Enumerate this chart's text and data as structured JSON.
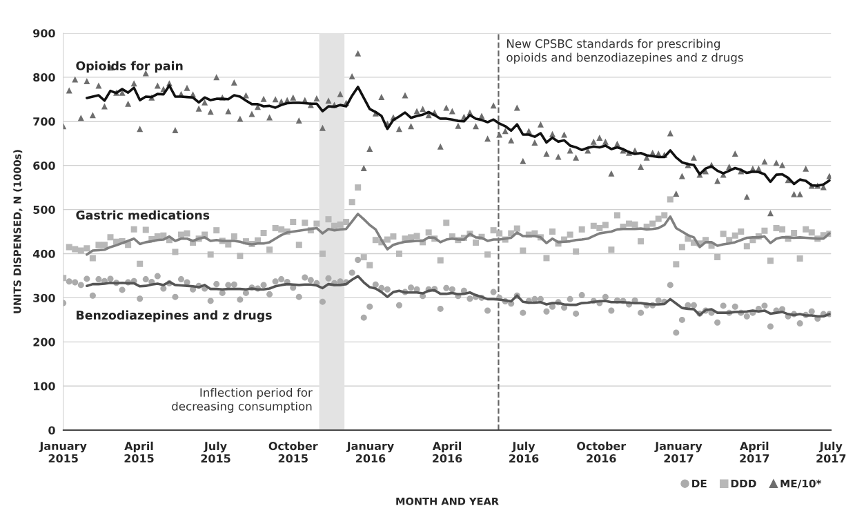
{
  "chart_data": {
    "type": "scatter",
    "xlabel": "MONTH AND YEAR",
    "ylabel": "UNITS DISPENSED, N (1000s)",
    "x": [
      "2015-01-01",
      "2015-01-08",
      "2015-01-15",
      "2015-01-22",
      "2015-01-29",
      "2015-02-05",
      "2015-02-12",
      "2015-02-19",
      "2015-02-26",
      "2015-03-05",
      "2015-03-12",
      "2015-03-19",
      "2015-03-26",
      "2015-04-02",
      "2015-04-09",
      "2015-04-16",
      "2015-04-23",
      "2015-04-30",
      "2015-05-07",
      "2015-05-14",
      "2015-05-21",
      "2015-05-28",
      "2015-06-04",
      "2015-06-11",
      "2015-06-18",
      "2015-06-25",
      "2015-07-02",
      "2015-07-09",
      "2015-07-16",
      "2015-07-23",
      "2015-07-30",
      "2015-08-06",
      "2015-08-13",
      "2015-08-20",
      "2015-08-27",
      "2015-09-03",
      "2015-09-10",
      "2015-09-17",
      "2015-09-24",
      "2015-10-01",
      "2015-10-08",
      "2015-10-15",
      "2015-10-22",
      "2015-10-29",
      "2015-11-05",
      "2015-11-12",
      "2015-11-19",
      "2015-11-26",
      "2015-12-03",
      "2015-12-10",
      "2015-12-17",
      "2015-12-24",
      "2015-12-31",
      "2016-01-07",
      "2016-01-14",
      "2016-01-21",
      "2016-01-28",
      "2016-02-04",
      "2016-02-11",
      "2016-02-18",
      "2016-02-25",
      "2016-03-03",
      "2016-03-10",
      "2016-03-17",
      "2016-03-24",
      "2016-03-31",
      "2016-04-07",
      "2016-04-14",
      "2016-04-21",
      "2016-04-28",
      "2016-05-05",
      "2016-05-12",
      "2016-05-19",
      "2016-05-26",
      "2016-06-02",
      "2016-06-09",
      "2016-06-16",
      "2016-06-23",
      "2016-06-30",
      "2016-07-07",
      "2016-07-14",
      "2016-07-21",
      "2016-07-28",
      "2016-08-04",
      "2016-08-11",
      "2016-08-18",
      "2016-08-25",
      "2016-09-01",
      "2016-09-08",
      "2016-09-15",
      "2016-09-22",
      "2016-09-29",
      "2016-10-06",
      "2016-10-13",
      "2016-10-20",
      "2016-10-27",
      "2016-11-03",
      "2016-11-10",
      "2016-11-17",
      "2016-11-24",
      "2016-12-01",
      "2016-12-08",
      "2016-12-15",
      "2016-12-22",
      "2016-12-29",
      "2017-01-05",
      "2017-01-12",
      "2017-01-19",
      "2017-01-26",
      "2017-02-02",
      "2017-02-09",
      "2017-02-16",
      "2017-02-23",
      "2017-03-02",
      "2017-03-09",
      "2017-03-16",
      "2017-03-23",
      "2017-03-30",
      "2017-04-06",
      "2017-04-13",
      "2017-04-20",
      "2017-04-27",
      "2017-05-04",
      "2017-05-11",
      "2017-05-18",
      "2017-05-25",
      "2017-06-01",
      "2017-06-08",
      "2017-06-15",
      "2017-06-22",
      "2017-06-29"
    ],
    "series": [
      {
        "name": "DE",
        "marker": "circle",
        "color": "#ababab",
        "values": [
          288,
          337,
          335,
          329,
          343,
          305,
          342,
          338,
          343,
          334,
          318,
          335,
          338,
          298,
          342,
          336,
          349,
          321,
          333,
          302,
          342,
          335,
          319,
          327,
          321,
          293,
          331,
          311,
          329,
          330,
          296,
          311,
          323,
          321,
          329,
          308,
          337,
          342,
          336,
          323,
          302,
          346,
          340,
          333,
          291,
          344,
          333,
          337,
          335,
          357,
          386,
          255,
          280,
          330,
          322,
          319,
          null,
          283,
          313,
          323,
          319,
          304,
          319,
          320,
          275,
          322,
          319,
          304,
          316,
          298,
          302,
          300,
          271,
          313,
          300,
          292,
          287,
          305,
          266,
          293,
          297,
          297,
          269,
          280,
          290,
          278,
          297,
          264,
          306,
          null,
          293,
          288,
          302,
          271,
          294,
          293,
          285,
          294,
          266,
          283,
          283,
          294,
          291,
          329,
          221,
          250,
          283,
          283,
          264,
          271,
          266,
          244,
          282,
          266,
          280,
          266,
          258,
          266,
          275,
          282,
          235,
          271,
          274,
          258,
          263,
          242,
          261,
          269,
          253,
          263,
          263
        ]
      },
      {
        "name": "DDD",
        "marker": "square",
        "color": "#b8b8b8",
        "values": [
          345,
          415,
          410,
          407,
          412,
          390,
          420,
          420,
          437,
          427,
          428,
          420,
          455,
          377,
          454,
          433,
          439,
          441,
          431,
          404,
          443,
          446,
          425,
          434,
          443,
          398,
          453,
          429,
          421,
          439,
          395,
          428,
          422,
          430,
          447,
          409,
          458,
          455,
          450,
          472,
          420,
          470,
          453,
          468,
          400,
          478,
          463,
          466,
          472,
          517,
          550,
          392,
          374,
          431,
          426,
          432,
          439,
          400,
          434,
          437,
          440,
          426,
          448,
          434,
          385,
          470,
          439,
          431,
          436,
          445,
          425,
          438,
          398,
          453,
          446,
          432,
          446,
          457,
          407,
          443,
          446,
          437,
          390,
          450,
          423,
          432,
          443,
          405,
          455,
          null,
          463,
          458,
          465,
          409,
          487,
          461,
          468,
          466,
          428,
          461,
          468,
          479,
          487,
          523,
          376,
          415,
          434,
          425,
          423,
          431,
          418,
          392,
          445,
          431,
          441,
          450,
          417,
          431,
          439,
          452,
          384,
          458,
          455,
          434,
          447,
          389,
          455,
          448,
          434,
          442,
          445
        ]
      },
      {
        "name": "ME/10*",
        "marker": "triangle",
        "color": "#6e6e6e",
        "values": [
          689,
          770,
          795,
          708,
          791,
          714,
          781,
          734,
          822,
          765,
          765,
          740,
          786,
          683,
          809,
          754,
          781,
          773,
          786,
          680,
          762,
          776,
          761,
          729,
          743,
          722,
          800,
          754,
          723,
          788,
          706,
          759,
          717,
          733,
          751,
          709,
          750,
          745,
          748,
          754,
          702,
          748,
          737,
          752,
          685,
          747,
          737,
          762,
          742,
          802,
          854,
          594,
          638,
          718,
          755,
          695,
          709,
          683,
          759,
          689,
          723,
          728,
          714,
          720,
          643,
          731,
          723,
          690,
          710,
          720,
          689,
          712,
          661,
          736,
          670,
          678,
          657,
          731,
          610,
          678,
          652,
          693,
          627,
          671,
          620,
          670,
          634,
          618,
          null,
          634,
          654,
          663,
          654,
          582,
          649,
          634,
          629,
          634,
          597,
          618,
          629,
          627,
          624,
          673,
          536,
          576,
          601,
          618,
          579,
          587,
          601,
          565,
          579,
          597,
          627,
          587,
          529,
          593,
          593,
          609,
          492,
          606,
          601,
          567,
          535,
          535,
          593,
          554,
          554,
          551,
          576
        ]
      },
      {
        "type": "line",
        "color": "#111111",
        "values": [
          null,
          null,
          null,
          null,
          753,
          756,
          759,
          747,
          769,
          764,
          773,
          765,
          776,
          748,
          756,
          755,
          762,
          761,
          781,
          756,
          756,
          755,
          754,
          743,
          754,
          748,
          751,
          751,
          750,
          759,
          756,
          747,
          739,
          739,
          734,
          735,
          731,
          737,
          741,
          742,
          742,
          741,
          740,
          740,
          723,
          734,
          733,
          737,
          734,
          758,
          778,
          753,
          728,
          721,
          712,
          683,
          703,
          711,
          720,
          708,
          712,
          715,
          721,
          714,
          706,
          706,
          704,
          701,
          700,
          714,
          706,
          703,
          698,
          704,
          695,
          689,
          679,
          693,
          670,
          670,
          665,
          673,
          652,
          663,
          654,
          657,
          645,
          641,
          635,
          640,
          643,
          641,
          645,
          637,
          641,
          637,
          630,
          626,
          628,
          623,
          621,
          619,
          619,
          634,
          618,
          607,
          603,
          601,
          580,
          593,
          598,
          588,
          582,
          588,
          594,
          590,
          583,
          586,
          585,
          580,
          563,
          579,
          580,
          572,
          558,
          568,
          565,
          555,
          554,
          557,
          566
        ]
      },
      {
        "type": "line",
        "color": "#808080",
        "values": [
          null,
          null,
          null,
          null,
          398,
          407,
          408,
          409,
          415,
          419,
          424,
          429,
          434,
          422,
          426,
          428,
          431,
          432,
          439,
          429,
          434,
          434,
          429,
          434,
          437,
          429,
          431,
          429,
          429,
          429,
          427,
          423,
          421,
          423,
          423,
          426,
          434,
          442,
          448,
          450,
          452,
          454,
          456,
          458,
          446,
          456,
          453,
          455,
          456,
          473,
          490,
          478,
          465,
          455,
          431,
          410,
          420,
          424,
          427,
          428,
          429,
          429,
          437,
          436,
          426,
          432,
          434,
          432,
          432,
          445,
          437,
          436,
          429,
          432,
          432,
          434,
          436,
          448,
          440,
          440,
          440,
          437,
          424,
          434,
          426,
          427,
          428,
          431,
          432,
          434,
          440,
          446,
          448,
          450,
          455,
          456,
          456,
          456,
          457,
          455,
          456,
          458,
          465,
          484,
          458,
          450,
          442,
          437,
          415,
          426,
          426,
          418,
          421,
          423,
          426,
          431,
          436,
          437,
          437,
          439,
          424,
          434,
          437,
          437,
          436,
          437,
          436,
          435,
          434,
          434,
          446
        ]
      },
      {
        "type": "line",
        "color": "#555555",
        "values": [
          null,
          null,
          null,
          null,
          327,
          331,
          331,
          332,
          334,
          333,
          334,
          333,
          333,
          326,
          327,
          330,
          332,
          329,
          336,
          329,
          328,
          327,
          326,
          324,
          329,
          320,
          320,
          319,
          320,
          320,
          320,
          319,
          321,
          319,
          319,
          321,
          326,
          329,
          331,
          330,
          329,
          330,
          330,
          328,
          322,
          331,
          329,
          329,
          331,
          341,
          349,
          335,
          324,
          321,
          313,
          302,
          313,
          316,
          312,
          312,
          312,
          310,
          316,
          317,
          309,
          309,
          311,
          308,
          309,
          312,
          306,
          302,
          297,
          297,
          296,
          294,
          292,
          305,
          291,
          289,
          289,
          290,
          285,
          288,
          288,
          285,
          284,
          284,
          288,
          289,
          291,
          292,
          293,
          290,
          290,
          290,
          289,
          288,
          288,
          286,
          285,
          285,
          286,
          297,
          287,
          277,
          275,
          274,
          261,
          272,
          274,
          266,
          266,
          266,
          268,
          268,
          269,
          271,
          269,
          271,
          264,
          266,
          268,
          263,
          261,
          263,
          260,
          260,
          258,
          258,
          263
        ]
      }
    ],
    "xlim": [
      "2015-01-01",
      "2017-07-01"
    ],
    "xticks": [
      {
        "value": "2015-01-01",
        "label": "January\n2015"
      },
      {
        "value": "2015-04-01",
        "label": "April\n2015"
      },
      {
        "value": "2015-07-01",
        "label": "July\n2015"
      },
      {
        "value": "2015-10-01",
        "label": "October\n2015"
      },
      {
        "value": "2016-01-01",
        "label": "January\n2016"
      },
      {
        "value": "2016-04-01",
        "label": "April\n2016"
      },
      {
        "value": "2016-07-01",
        "label": "July\n2016"
      },
      {
        "value": "2016-10-01",
        "label": "October\n2016"
      },
      {
        "value": "2017-01-01",
        "label": "January\n2017"
      },
      {
        "value": "2017-04-01",
        "label": "April\n2017"
      },
      {
        "value": "2017-07-01",
        "label": "July\n2017"
      }
    ],
    "ylim": [
      0,
      900
    ],
    "yticks": [
      0,
      100,
      200,
      300,
      400,
      500,
      600,
      700,
      800,
      900
    ],
    "grid": "y",
    "legend": "bottom right",
    "bands": [
      {
        "axis": "x",
        "from": "2015-11-01",
        "to": "2015-12-01",
        "label": "Inflection period for\ndecreasing consumption",
        "color": "#e3e3e3"
      }
    ],
    "ref_lines": [
      {
        "axis": "x",
        "value": "2016-06-01",
        "label": "New CPSBC standards for prescribing\nopioids and benzodiazepines and z drugs",
        "color": "#666666",
        "line_style": "dashed"
      }
    ],
    "annotations": [
      "Opioids for pain",
      "Gastric medications",
      "Benzodiazepines and z drugs"
    ]
  }
}
